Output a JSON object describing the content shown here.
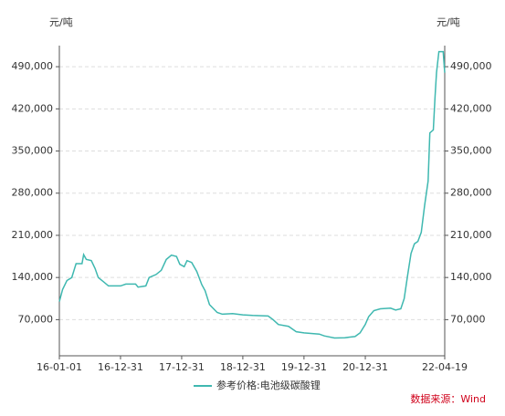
{
  "chart_data": {
    "type": "line",
    "y_unit": "元/吨",
    "y2_unit": "元/吨",
    "source": "数据来源：Wind",
    "x": [
      "16-01-01",
      "16-01-20",
      "16-02-15",
      "16-03-15",
      "16-04-10",
      "16-05-15",
      "16-05-25",
      "16-06-10",
      "16-07-10",
      "16-08-01",
      "16-08-20",
      "16-09-20",
      "16-10-20",
      "16-12-31",
      "17-02-01",
      "17-03-31",
      "17-04-15",
      "17-05-31",
      "17-06-20",
      "17-07-31",
      "17-08-31",
      "17-09-30",
      "17-10-31",
      "17-11-30",
      "17-12-20",
      "18-01-15",
      "18-02-01",
      "18-03-01",
      "18-03-31",
      "18-04-30",
      "18-05-20",
      "18-06-15",
      "18-07-31",
      "18-08-31",
      "18-10-31",
      "18-12-31",
      "19-02-28",
      "19-05-31",
      "19-06-30",
      "19-07-31",
      "19-09-30",
      "19-11-15",
      "19-12-31",
      "20-03-31",
      "20-04-30",
      "20-06-30",
      "20-08-31",
      "20-10-31",
      "20-11-30",
      "20-12-31",
      "21-01-20",
      "21-02-20",
      "21-03-31",
      "21-05-31",
      "21-06-30",
      "21-07-31",
      "21-08-20",
      "21-09-10",
      "21-09-30",
      "21-10-20",
      "21-11-10",
      "21-11-30",
      "21-12-20",
      "22-01-10",
      "22-01-20",
      "22-02-10",
      "22-02-20",
      "22-03-01",
      "22-03-15",
      "22-04-10",
      "22-04-19"
    ],
    "series": [
      {
        "name": "参考价格:电池级碳酸锂",
        "color": "#3fb8b0",
        "values": [
          100000,
          120000,
          135000,
          140000,
          163000,
          163000,
          178000,
          170000,
          168000,
          155000,
          140000,
          133000,
          126000,
          126000,
          129000,
          129000,
          124000,
          126000,
          140000,
          145000,
          152000,
          170000,
          177000,
          175000,
          162000,
          158000,
          168000,
          165000,
          150000,
          128000,
          118000,
          95000,
          82000,
          79000,
          80000,
          78000,
          77000,
          76000,
          70000,
          62000,
          59000,
          50000,
          48000,
          46000,
          43000,
          39500,
          40000,
          42000,
          48000,
          62000,
          75000,
          85000,
          88000,
          89000,
          86000,
          88000,
          105000,
          145000,
          180000,
          196000,
          200000,
          215000,
          260000,
          300000,
          380000,
          385000,
          440000,
          480000,
          515000,
          515000,
          480000
        ]
      }
    ],
    "xlim": [
      "16-01-01",
      "22-04-19"
    ],
    "xticks": [
      "16-01-01",
      "16-12-31",
      "17-12-31",
      "18-12-31",
      "19-12-31",
      "20-12-31",
      "22-04-19"
    ],
    "ylim": [
      10000,
      525000
    ],
    "yticks": [
      {
        "value": 70000,
        "label": "70,000"
      },
      {
        "value": 140000,
        "label": "140,000"
      },
      {
        "value": 210000,
        "label": "210,000"
      },
      {
        "value": 280000,
        "label": "280,000"
      },
      {
        "value": 350000,
        "label": "350,000"
      },
      {
        "value": 420000,
        "label": "420,000"
      },
      {
        "value": 490000,
        "label": "490,000"
      }
    ],
    "y2lim": [
      10000,
      525000
    ],
    "y2ticks": [
      {
        "value": 70000,
        "label": "70,000"
      },
      {
        "value": 140000,
        "label": "140,000"
      },
      {
        "value": 210000,
        "label": "210,000"
      },
      {
        "value": 280000,
        "label": "280,000"
      },
      {
        "value": 350000,
        "label": "350,000"
      },
      {
        "value": 420000,
        "label": "420,000"
      },
      {
        "value": 490000,
        "label": "490,000"
      }
    ],
    "grid": true
  }
}
